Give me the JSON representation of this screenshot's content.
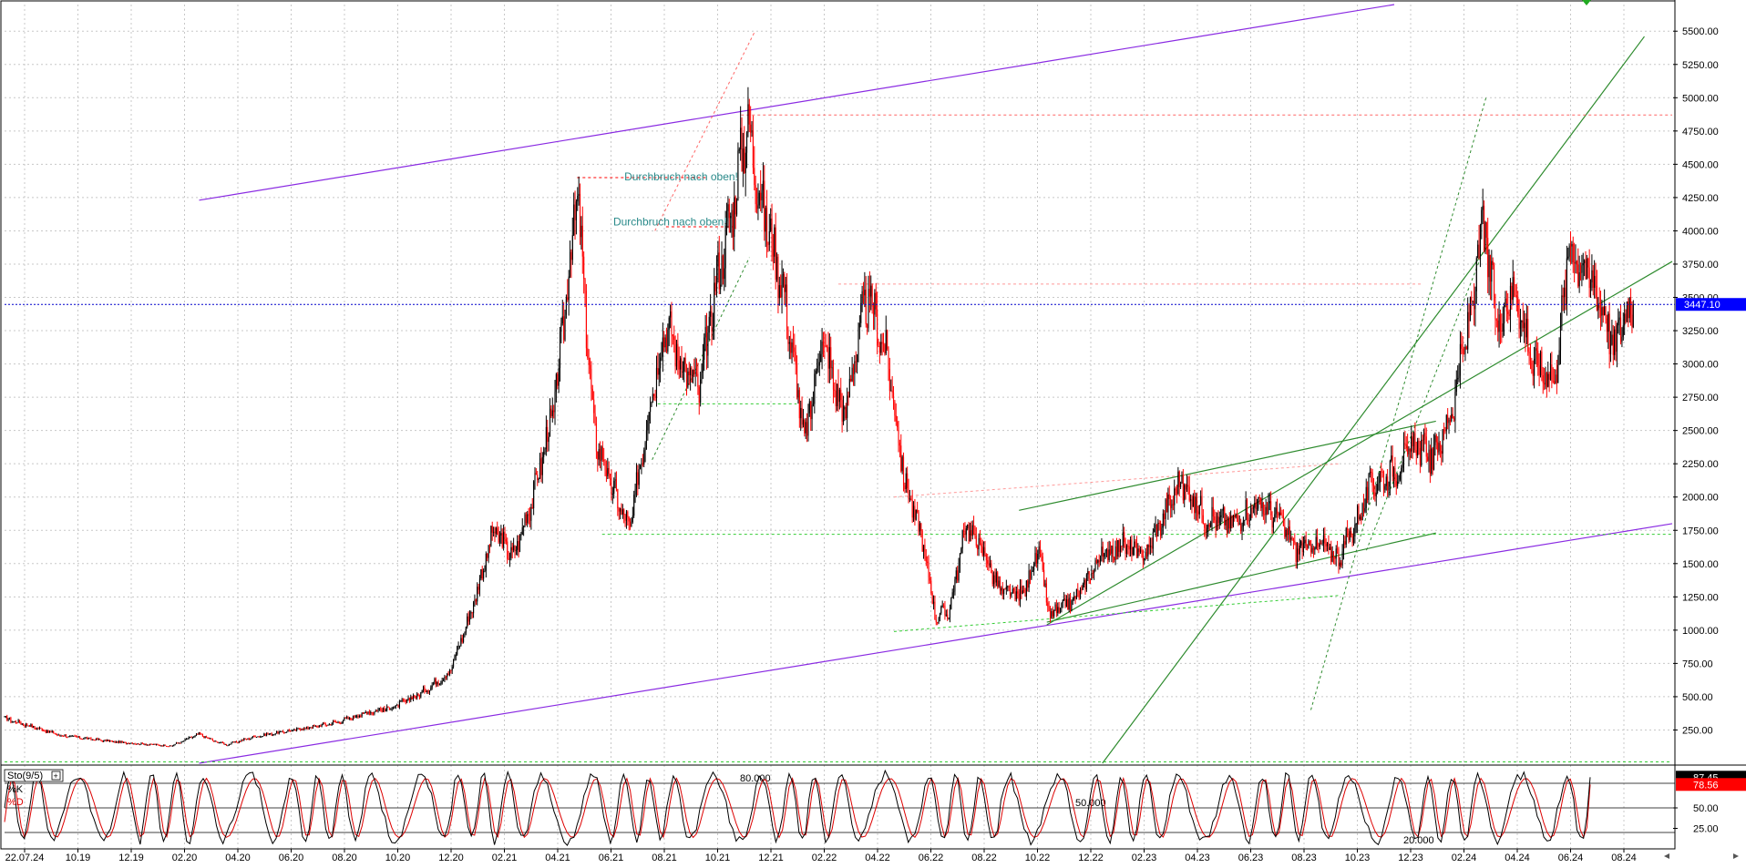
{
  "chart_data": [
    {
      "type": "candlestick",
      "title": "",
      "xlabel": "",
      "ylabel": "",
      "ylim": [
        0,
        5700
      ],
      "y_ticks": [
        250,
        500,
        750,
        1000,
        1250,
        1500,
        1750,
        2000,
        2250,
        2500,
        2750,
        3000,
        3250,
        3500,
        3750,
        4000,
        4250,
        4500,
        4750,
        5000,
        5250,
        5500
      ],
      "y_tick_labels": [
        "250.00",
        "500.00",
        "750.00",
        "1000.00",
        "1250.00",
        "1500.00",
        "1750.00",
        "2000.00",
        "2250.00",
        "2500.00",
        "2750.00",
        "3000.00",
        "3250.00",
        "3500.00",
        "3750.00",
        "4000.00",
        "4250.00",
        "4500.00",
        "4750.00",
        "5000.00",
        "5250.00",
        "5500.00"
      ],
      "x_tick_labels": [
        "22.07.24",
        "10.19",
        "12.19",
        "02.20",
        "04.20",
        "06.20",
        "08.20",
        "10.20",
        "12.20",
        "02.21",
        "04.21",
        "06.21",
        "08.21",
        "10.21",
        "12.21",
        "02.22",
        "04.22",
        "06.22",
        "08.22",
        "10.22",
        "12.22",
        "02.23",
        "04.23",
        "06.23",
        "08.23",
        "10.23",
        "12.23",
        "02.24",
        "04.24",
        "06.24",
        "08.24"
      ],
      "last_price": 3447.1,
      "last_price_label": "3447.10",
      "anchors": [
        {
          "m": 0,
          "v": 340
        },
        {
          "m": 2,
          "v": 210
        },
        {
          "m": 4,
          "v": 160
        },
        {
          "m": 6,
          "v": 130
        },
        {
          "m": 7,
          "v": 220
        },
        {
          "m": 7.5,
          "v": 170
        },
        {
          "m": 8,
          "v": 140
        },
        {
          "m": 9,
          "v": 200
        },
        {
          "m": 11,
          "v": 270
        },
        {
          "m": 12,
          "v": 310
        },
        {
          "m": 13,
          "v": 380
        },
        {
          "m": 14,
          "v": 420
        },
        {
          "m": 15,
          "v": 530
        },
        {
          "m": 16,
          "v": 680
        },
        {
          "m": 16.8,
          "v": 1150
        },
        {
          "m": 17.6,
          "v": 1750
        },
        {
          "m": 18.3,
          "v": 1550
        },
        {
          "m": 19,
          "v": 2000
        },
        {
          "m": 19.8,
          "v": 2700
        },
        {
          "m": 20.6,
          "v": 4300
        },
        {
          "m": 21.2,
          "v": 2500
        },
        {
          "m": 21.8,
          "v": 2100
        },
        {
          "m": 22.5,
          "v": 1750
        },
        {
          "m": 23.2,
          "v": 2700
        },
        {
          "m": 23.8,
          "v": 3300
        },
        {
          "m": 24.4,
          "v": 3000
        },
        {
          "m": 25,
          "v": 2800
        },
        {
          "m": 25.6,
          "v": 3600
        },
        {
          "m": 26.3,
          "v": 4300
        },
        {
          "m": 26.7,
          "v": 4820
        },
        {
          "m": 27.3,
          "v": 4150
        },
        {
          "m": 28,
          "v": 3600
        },
        {
          "m": 28.8,
          "v": 2400
        },
        {
          "m": 29.4,
          "v": 3200
        },
        {
          "m": 30.2,
          "v": 2600
        },
        {
          "m": 30.8,
          "v": 3300
        },
        {
          "m": 31.1,
          "v": 3500
        },
        {
          "m": 31.8,
          "v": 3000
        },
        {
          "m": 32.4,
          "v": 2100
        },
        {
          "m": 33,
          "v": 1700
        },
        {
          "m": 33.5,
          "v": 1100
        },
        {
          "m": 34,
          "v": 1150
        },
        {
          "m": 34.6,
          "v": 1800
        },
        {
          "m": 35.2,
          "v": 1600
        },
        {
          "m": 35.8,
          "v": 1300
        },
        {
          "m": 36.6,
          "v": 1250
        },
        {
          "m": 37.2,
          "v": 1600
        },
        {
          "m": 37.6,
          "v": 1100
        },
        {
          "m": 38.6,
          "v": 1250
        },
        {
          "m": 39.4,
          "v": 1550
        },
        {
          "m": 40.2,
          "v": 1650
        },
        {
          "m": 41,
          "v": 1550
        },
        {
          "m": 41.8,
          "v": 1900
        },
        {
          "m": 42.3,
          "v": 2120
        },
        {
          "m": 43.2,
          "v": 1850
        },
        {
          "m": 44.2,
          "v": 1800
        },
        {
          "m": 45,
          "v": 1950
        },
        {
          "m": 45.8,
          "v": 1850
        },
        {
          "m": 46.5,
          "v": 1600
        },
        {
          "m": 47.3,
          "v": 1650
        },
        {
          "m": 48,
          "v": 1550
        },
        {
          "m": 48.6,
          "v": 1800
        },
        {
          "m": 49.2,
          "v": 2100
        },
        {
          "m": 50,
          "v": 2200
        },
        {
          "m": 50.8,
          "v": 2400
        },
        {
          "m": 51.4,
          "v": 2300
        },
        {
          "m": 52,
          "v": 2600
        },
        {
          "m": 52.6,
          "v": 3200
        },
        {
          "m": 53.2,
          "v": 4050
        },
        {
          "m": 53.7,
          "v": 3300
        },
        {
          "m": 54.3,
          "v": 3600
        },
        {
          "m": 55,
          "v": 3000
        },
        {
          "m": 55.8,
          "v": 2900
        },
        {
          "m": 56.3,
          "v": 3900
        },
        {
          "m": 56.9,
          "v": 3700
        },
        {
          "m": 57.5,
          "v": 3450
        },
        {
          "m": 57.9,
          "v": 3100
        },
        {
          "m": 58.3,
          "v": 3400
        },
        {
          "m": 58.6,
          "v": 3447
        }
      ],
      "trendlines": [
        {
          "color": "#8a2be2",
          "style": "solid",
          "from": {
            "m": 7,
            "v": 0
          },
          "to": {
            "m": 60,
            "v": 1800
          }
        },
        {
          "color": "#8a2be2",
          "style": "solid",
          "from": {
            "m": 7,
            "v": 4230
          },
          "to": {
            "m": 50,
            "v": 5700
          }
        },
        {
          "color": "#2e8b2e",
          "style": "solid",
          "from": {
            "m": 39.5,
            "v": 0
          },
          "to": {
            "m": 59,
            "v": 5460
          }
        },
        {
          "color": "#2e8b2e",
          "style": "solid",
          "from": {
            "m": 37.5,
            "v": 1040
          },
          "to": {
            "m": 60,
            "v": 3770
          }
        },
        {
          "color": "#2e8b2e",
          "style": "solid",
          "from": {
            "m": 36.5,
            "v": 1900
          },
          "to": {
            "m": 51.5,
            "v": 2570
          }
        },
        {
          "color": "#2e8b2e",
          "style": "solid",
          "from": {
            "m": 37.5,
            "v": 1060
          },
          "to": {
            "m": 51.5,
            "v": 1730
          }
        },
        {
          "color": "#2e8b2e",
          "style": "dashed",
          "from": {
            "m": 47,
            "v": 400
          },
          "to": {
            "m": 53.3,
            "v": 5000
          }
        },
        {
          "color": "#2e8b2e",
          "style": "dashed",
          "from": {
            "m": 49,
            "v": 1600
          },
          "to": {
            "m": 53.3,
            "v": 3900
          }
        },
        {
          "color": "#2e8b2e",
          "style": "dashed",
          "from": {
            "m": 23.3,
            "v": 2280
          },
          "to": {
            "m": 26.8,
            "v": 3800
          }
        },
        {
          "color": "#33cc33",
          "style": "dashed",
          "from": {
            "m": 21.5,
            "v": 1720
          },
          "to": {
            "m": 60,
            "v": 1720
          }
        },
        {
          "color": "#33cc33",
          "style": "dashed",
          "from": {
            "m": 0,
            "v": 10
          },
          "to": {
            "m": 60,
            "v": 10
          }
        },
        {
          "color": "#33cc33",
          "style": "dashed",
          "from": {
            "m": 23.5,
            "v": 2700
          },
          "to": {
            "m": 28.5,
            "v": 2700
          }
        },
        {
          "color": "#33cc33",
          "style": "dashed",
          "from": {
            "m": 32,
            "v": 990
          },
          "to": {
            "m": 48,
            "v": 1260
          }
        },
        {
          "color": "#ff6666",
          "style": "dashed",
          "from": {
            "m": 26.5,
            "v": 4870
          },
          "to": {
            "m": 60,
            "v": 4870
          }
        },
        {
          "color": "#ff6666",
          "style": "dashed",
          "from": {
            "m": 23.4,
            "v": 4000
          },
          "to": {
            "m": 27,
            "v": 5500
          }
        },
        {
          "color": "#ff9999",
          "style": "dashed",
          "from": {
            "m": 30,
            "v": 3600
          },
          "to": {
            "m": 51,
            "v": 3600
          }
        },
        {
          "color": "#ff9999",
          "style": "dashed",
          "from": {
            "m": 32,
            "v": 2000
          },
          "to": {
            "m": 48,
            "v": 2250
          }
        },
        {
          "color": "#ff0000",
          "style": "dashed",
          "from": {
            "m": 20.6,
            "v": 4400
          },
          "to": {
            "m": 25.3,
            "v": 4400
          }
        },
        {
          "color": "#ff0000",
          "style": "dashed",
          "from": {
            "m": 23.8,
            "v": 4030
          },
          "to": {
            "m": 26.2,
            "v": 4030
          }
        }
      ],
      "annotations": [
        {
          "text": "Durchbruch nach oben!",
          "m": 22.3,
          "v": 4380
        },
        {
          "text": "Durchbruch nach oben!",
          "m": 21.9,
          "v": 4040
        }
      ]
    },
    {
      "type": "line",
      "indicator_label": "Sto(9/5)",
      "legend": [
        "%K",
        "%D"
      ],
      "ylim": [
        0,
        100
      ],
      "y_ticks": [
        25,
        50
      ],
      "y_tick_labels": [
        "25.00",
        "50.00"
      ],
      "level_lines": [
        20,
        50,
        80
      ],
      "level_labels": [
        "20.000",
        "50.000",
        "80.000"
      ],
      "k_value": 87.45,
      "d_value": 78.56,
      "k_label": "87.45",
      "d_label": "78.56"
    }
  ],
  "colors": {
    "bull_candle": "#000000",
    "bear_candle": "#ff0000",
    "price_line": "#0000cc",
    "k_line": "#000000",
    "d_line": "#dd0000",
    "last_price_bg": "#0000ff",
    "d_bg": "#ff0000"
  }
}
